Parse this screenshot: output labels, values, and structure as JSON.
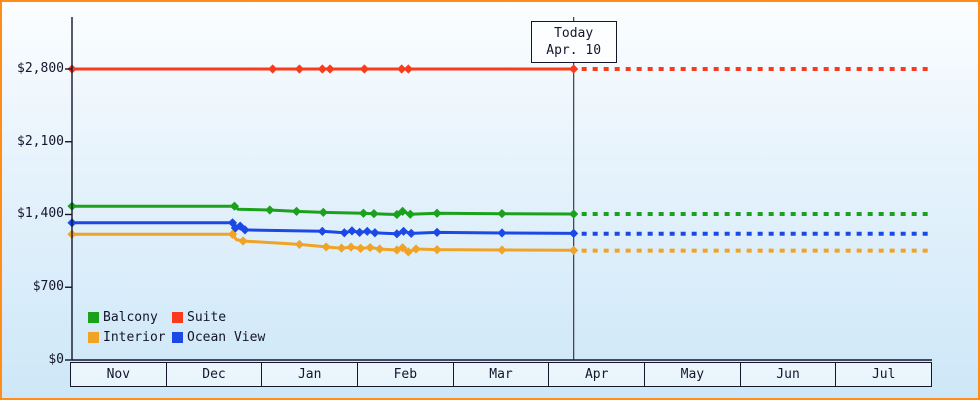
{
  "chart_data": {
    "type": "line",
    "title": "",
    "description": "Cruise cabin price history by category with dotted forecast after today",
    "x_axis": {
      "unit": "month",
      "months": [
        "Nov",
        "Dec",
        "Jan",
        "Feb",
        "Mar",
        "Apr",
        "May",
        "Jun",
        "Jul"
      ]
    },
    "y_axis": {
      "ticks": [
        0,
        700,
        1400,
        2100,
        2800
      ],
      "tick_labels": [
        "$0",
        "$700",
        "$1,400",
        "$2,100",
        "$2,800"
      ],
      "max": 3300
    },
    "today": {
      "x_month": 5.25,
      "label": "Today",
      "date": "Apr. 10"
    },
    "point_format": "[month_index_from_nov, price_usd, has_marker]",
    "series": [
      {
        "name": "Suite",
        "color": "#fb3a1c",
        "forecast": 2800,
        "points": [
          [
            0,
            2800,
            1
          ],
          [
            2.1,
            2800,
            1
          ],
          [
            2.38,
            2800,
            1
          ],
          [
            2.62,
            2800,
            1
          ],
          [
            2.7,
            2800,
            1
          ],
          [
            3.06,
            2800,
            1
          ],
          [
            3.45,
            2800,
            1
          ],
          [
            3.52,
            2800,
            1
          ],
          [
            5.25,
            2800,
            1
          ]
        ]
      },
      {
        "name": "Balcony",
        "color": "#1ba11b",
        "forecast": 1405,
        "points": [
          [
            0,
            1480,
            1
          ],
          [
            1.7,
            1480,
            1
          ],
          [
            1.74,
            1450,
            0
          ],
          [
            2.07,
            1443,
            1
          ],
          [
            2.35,
            1430,
            1
          ],
          [
            2.63,
            1420,
            1
          ],
          [
            3.05,
            1412,
            1
          ],
          [
            3.16,
            1408,
            1
          ],
          [
            3.4,
            1400,
            1
          ],
          [
            3.46,
            1430,
            1
          ],
          [
            3.54,
            1402,
            1
          ],
          [
            3.82,
            1412,
            1
          ],
          [
            4.5,
            1408,
            1
          ],
          [
            5.25,
            1405,
            1
          ]
        ]
      },
      {
        "name": "Interior",
        "color": "#f0a325",
        "forecast": 1052,
        "points": [
          [
            0,
            1210,
            1
          ],
          [
            1.68,
            1210,
            1
          ],
          [
            1.72,
            1158,
            0
          ],
          [
            1.79,
            1145,
            1
          ],
          [
            2.38,
            1112,
            1
          ],
          [
            2.66,
            1088,
            1
          ],
          [
            2.82,
            1076,
            1
          ],
          [
            2.92,
            1086,
            1
          ],
          [
            3.02,
            1074,
            1
          ],
          [
            3.12,
            1082,
            1
          ],
          [
            3.22,
            1068,
            1
          ],
          [
            3.4,
            1058,
            1
          ],
          [
            3.46,
            1080,
            1
          ],
          [
            3.52,
            1040,
            1
          ],
          [
            3.6,
            1068,
            1
          ],
          [
            3.82,
            1062,
            1
          ],
          [
            4.5,
            1058,
            1
          ],
          [
            5.25,
            1055,
            1
          ]
        ]
      },
      {
        "name": "Ocean View",
        "color": "#1c49e6",
        "forecast": 1215,
        "points": [
          [
            0,
            1320,
            1
          ],
          [
            1.68,
            1320,
            1
          ],
          [
            1.71,
            1270,
            1
          ],
          [
            1.76,
            1288,
            1
          ],
          [
            1.81,
            1252,
            1
          ],
          [
            2.62,
            1238,
            1
          ],
          [
            2.85,
            1224,
            1
          ],
          [
            2.93,
            1242,
            1
          ],
          [
            3.01,
            1228,
            1
          ],
          [
            3.09,
            1238,
            1
          ],
          [
            3.17,
            1224,
            1
          ],
          [
            3.4,
            1214,
            1
          ],
          [
            3.47,
            1238,
            1
          ],
          [
            3.55,
            1218,
            1
          ],
          [
            3.82,
            1228,
            1
          ],
          [
            4.5,
            1222,
            1
          ],
          [
            5.25,
            1218,
            1
          ]
        ]
      }
    ],
    "legend": [
      {
        "label": "Balcony",
        "color": "#1ba11b"
      },
      {
        "label": "Suite",
        "color": "#fb3a1c"
      },
      {
        "label": "Interior",
        "color": "#f0a325"
      },
      {
        "label": "Ocean View",
        "color": "#1c49e6"
      }
    ],
    "colors": {
      "frame_border": "#ff8d17",
      "axis": "#15152c",
      "today_line": "#3a3a4a"
    }
  }
}
